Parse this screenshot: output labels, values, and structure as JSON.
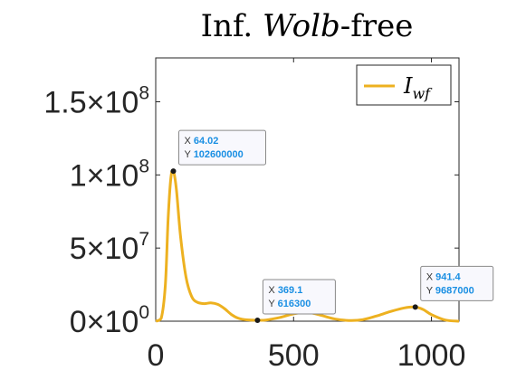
{
  "chart_data": {
    "type": "line",
    "title_prefix": "Inf.",
    "title_italic": "Wolb",
    "title_suffix": "-free",
    "xlim": [
      0,
      1100
    ],
    "ylim": [
      0,
      180000000
    ],
    "x_ticks": [
      {
        "value": 0,
        "label": "0"
      },
      {
        "value": 500,
        "label": "500"
      },
      {
        "value": 1000,
        "label": "1000"
      }
    ],
    "y_ticks": [
      {
        "value": 0,
        "mant": "0",
        "exp": "0"
      },
      {
        "value": 50000000,
        "mant": "5",
        "exp": "7"
      },
      {
        "value": 100000000,
        "mant": "1",
        "exp": "8"
      },
      {
        "value": 150000000,
        "mant": "1.5",
        "exp": "8"
      }
    ],
    "legend": {
      "position": "top-right",
      "symbol": "I",
      "subscript": "wf"
    },
    "series": [
      {
        "color": "#EDB120",
        "x": [
          0,
          20,
          35,
          45,
          55,
          64.02,
          75,
          90,
          110,
          130,
          150,
          175,
          200,
          225,
          250,
          275,
          300,
          330,
          369.1,
          400,
          450,
          500,
          550,
          600,
          650,
          700,
          750,
          800,
          850,
          900,
          941.4,
          970,
          1000,
          1050,
          1100
        ],
        "y": [
          0,
          2000000,
          25000000,
          70000000,
          98000000,
          102600000,
          90000000,
          58000000,
          30000000,
          17000000,
          13000000,
          12000000,
          12500000,
          11500000,
          8500000,
          4500000,
          2000000,
          900000,
          616300,
          800000,
          2500000,
          5000000,
          6000000,
          4000000,
          1500000,
          500000,
          1000000,
          3500000,
          6500000,
          9000000,
          9687000,
          8000000,
          4500000,
          800000,
          0
        ]
      }
    ],
    "datatips": [
      {
        "x": 64.02,
        "y": 102600000,
        "x_text": "64.02",
        "y_text": "102600000"
      },
      {
        "x": 369.1,
        "y": 616300,
        "x_text": "369.1",
        "y_text": "616300"
      },
      {
        "x": 941.4,
        "y": 9687000,
        "x_text": "941.4",
        "y_text": "9687000"
      }
    ],
    "tip_x_prefix": "X",
    "tip_y_prefix": "Y"
  }
}
